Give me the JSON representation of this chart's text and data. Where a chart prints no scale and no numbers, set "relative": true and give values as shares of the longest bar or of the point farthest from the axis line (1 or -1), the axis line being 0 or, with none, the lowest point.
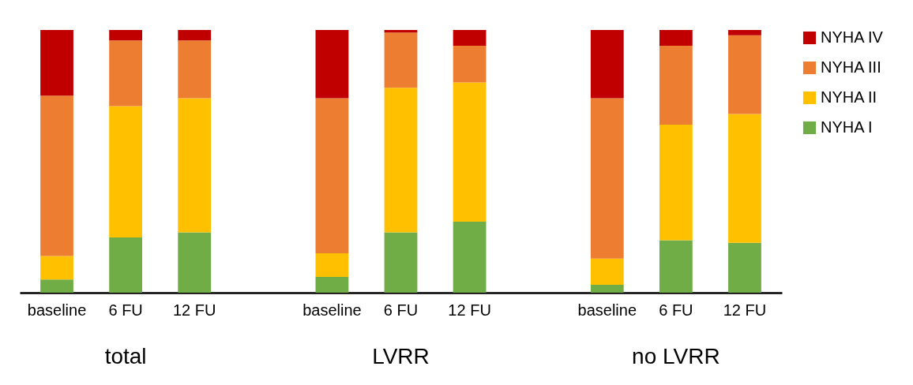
{
  "chart_data": {
    "type": "bar",
    "relative": true,
    "stacked": true,
    "legend": "right",
    "categories": [
      "baseline",
      "6 FU",
      "12 FU",
      null,
      "baseline",
      "6 FU",
      "12 FU",
      null,
      "baseline",
      "6 FU",
      "12 FU"
    ],
    "annotations": [
      "total",
      "LVRR",
      "no LVRR"
    ],
    "series": [
      {
        "name": "NYHA I",
        "color": "#70ad47",
        "values": [
          0.05,
          0.21,
          0.23,
          null,
          0.06,
          0.23,
          0.27,
          null,
          0.03,
          0.2,
          0.19
        ]
      },
      {
        "name": "NYHA II",
        "color": "#ffc000",
        "values": [
          0.09,
          0.5,
          0.51,
          null,
          0.09,
          0.55,
          0.53,
          null,
          0.1,
          0.44,
          0.49
        ]
      },
      {
        "name": "NYHA III",
        "color": "#ed7d31",
        "values": [
          0.61,
          0.25,
          0.22,
          null,
          0.59,
          0.21,
          0.14,
          null,
          0.61,
          0.3,
          0.3
        ]
      },
      {
        "name": "NYHA IV",
        "color": "#c00000",
        "values": [
          0.25,
          0.04,
          0.04,
          null,
          0.26,
          0.01,
          0.06,
          null,
          0.26,
          0.06,
          0.02
        ]
      }
    ]
  }
}
